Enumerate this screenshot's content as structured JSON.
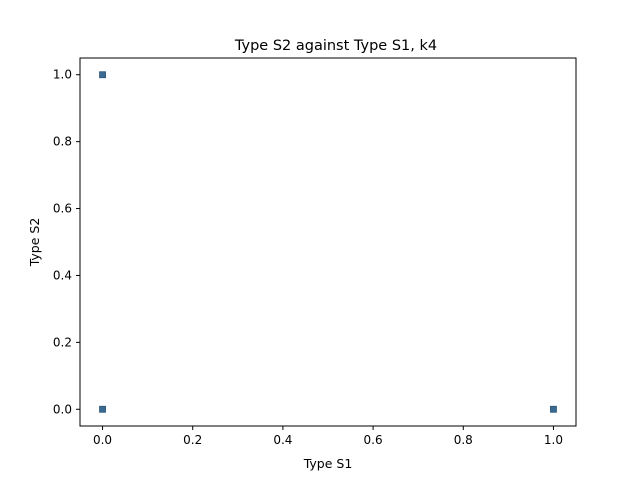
{
  "chart_data": {
    "type": "scatter",
    "title": "Type S2 against Type S1, k4",
    "xlabel": "Type S1",
    "ylabel": "Type S2",
    "xlim": [
      -0.05,
      1.05
    ],
    "ylim": [
      -0.05,
      1.05
    ],
    "xticks": [
      "0.0",
      "0.2",
      "0.4",
      "0.6",
      "0.8",
      "1.0"
    ],
    "yticks": [
      "0.0",
      "0.2",
      "0.4",
      "0.6",
      "0.8",
      "1.0"
    ],
    "grid": false,
    "series": [
      {
        "color": "#3a6a94",
        "points": [
          {
            "x": 0.0,
            "y": 1.0
          },
          {
            "x": 0.0,
            "y": 0.0
          },
          {
            "x": 1.0,
            "y": 0.0
          }
        ]
      }
    ]
  }
}
